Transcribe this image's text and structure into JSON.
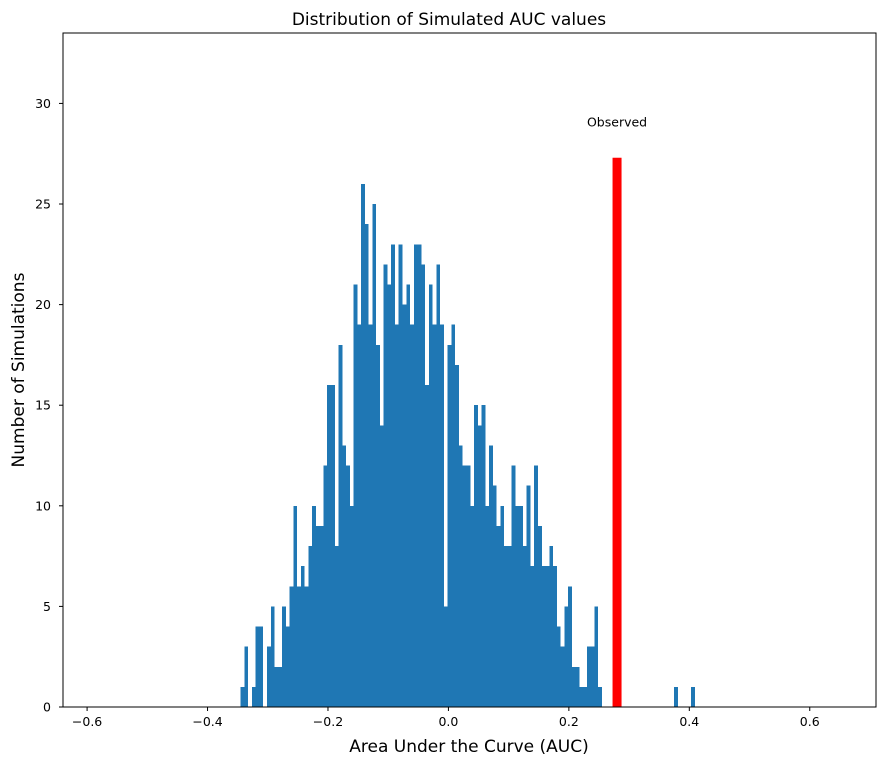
{
  "chart_data": {
    "type": "bar",
    "title": "Distribution of Simulated AUC values",
    "xlabel": "Area Under the Curve (AUC)",
    "ylabel": "Number of Simulations",
    "xlim": [
      -0.64,
      0.71
    ],
    "ylim": [
      0,
      33.5
    ],
    "grid": false,
    "xticks": [
      -0.6,
      -0.4,
      -0.2,
      0.0,
      0.2,
      0.4,
      0.6
    ],
    "xtick_labels": [
      "−0.6",
      "−0.4",
      "−0.2",
      "0.0",
      "0.2",
      "0.4",
      "0.6"
    ],
    "yticks": [
      0,
      5,
      10,
      15,
      20,
      25,
      30
    ],
    "ytick_labels": [
      "0",
      "5",
      "10",
      "15",
      "20",
      "25",
      "30"
    ],
    "bin_start": -0.345,
    "bin_width": 0.00625,
    "counts": [
      1,
      3,
      0,
      1,
      4,
      4,
      0,
      3,
      5,
      2,
      2,
      5,
      4,
      6,
      10,
      6,
      7,
      6,
      8,
      10,
      9,
      9,
      12,
      16,
      16,
      8,
      18,
      13,
      12,
      10,
      21,
      19,
      26,
      24,
      19,
      25,
      18,
      14,
      22,
      21,
      23,
      19,
      23,
      20,
      21,
      19,
      23,
      23,
      22,
      16,
      21,
      19,
      22,
      19,
      5,
      18,
      19,
      17,
      13,
      12,
      12,
      10,
      15,
      14,
      15,
      10,
      13,
      11,
      9,
      10,
      8,
      8,
      12,
      10,
      10,
      8,
      11,
      7,
      12,
      9,
      7,
      7,
      8,
      7,
      4,
      3,
      5,
      6,
      2,
      2,
      1,
      1,
      3,
      3,
      5,
      1
    ],
    "outliers": [
      {
        "x": 0.378,
        "count": 1
      },
      {
        "x": 0.406,
        "count": 1
      }
    ],
    "bar_color": "#1f77b4",
    "observed": {
      "label": "Observed",
      "x": 0.28,
      "height": 27.3,
      "color": "#ff0000"
    }
  }
}
